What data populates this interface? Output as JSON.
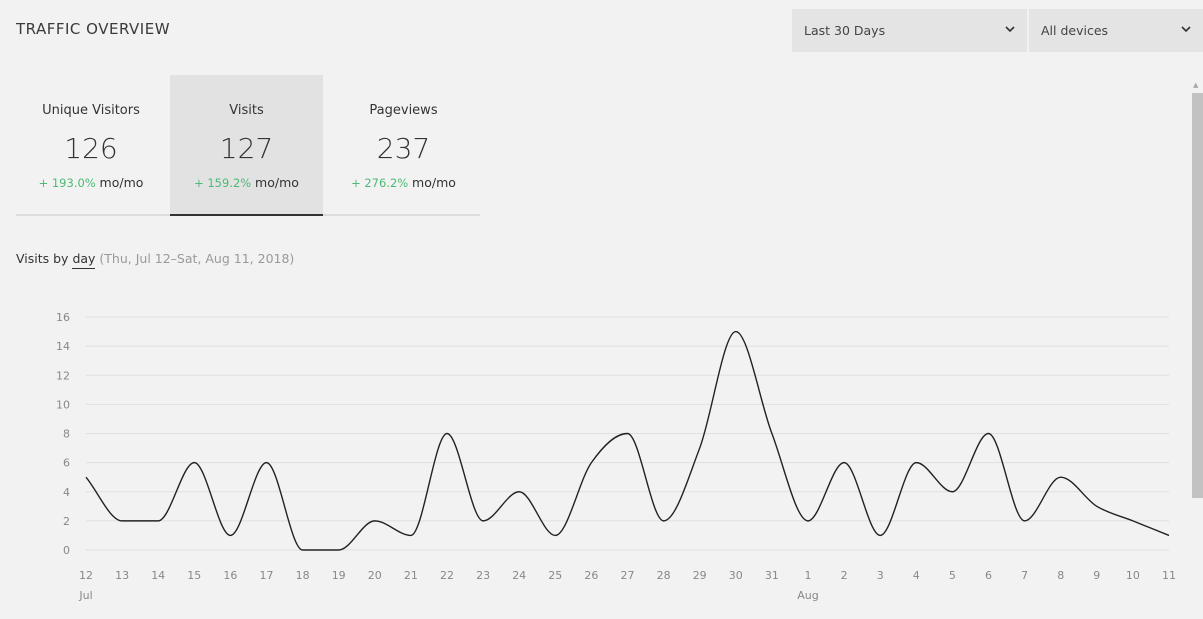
{
  "header": {
    "title": "TRAFFIC OVERVIEW"
  },
  "filters": {
    "range_label": "Last 30 Days",
    "devices_label": "All devices",
    "chevron_icon": "chevron-down-icon"
  },
  "metrics": [
    {
      "label": "Unique Visitors",
      "value": "126",
      "change": "+ 193.0%",
      "unit": "mo/mo"
    },
    {
      "label": "Visits",
      "value": "127",
      "change": "+ 159.2%",
      "unit": "mo/mo"
    },
    {
      "label": "Pageviews",
      "value": "237",
      "change": "+ 276.2%",
      "unit": "mo/mo"
    }
  ],
  "active_metric": "Visits",
  "subtitle": {
    "prefix": "Visits by ",
    "granularity": "day",
    "range": "(Thu, Jul 12–Sat, Aug 11, 2018)"
  },
  "colors": {
    "positive": "#4cba76",
    "line": "#222222",
    "grid": "#e0e0e0"
  },
  "chart_data": {
    "type": "line",
    "x": [
      "12",
      "13",
      "14",
      "15",
      "16",
      "17",
      "18",
      "19",
      "20",
      "21",
      "22",
      "23",
      "24",
      "25",
      "26",
      "27",
      "28",
      "29",
      "30",
      "31",
      "1",
      "2",
      "3",
      "4",
      "5",
      "6",
      "7",
      "8",
      "9",
      "10",
      "11"
    ],
    "month_labels": [
      {
        "at": "12",
        "label": "Jul"
      },
      {
        "at": "1",
        "label": "Aug"
      }
    ],
    "series": [
      {
        "values": [
          5,
          2,
          2,
          6,
          1,
          6,
          0,
          0,
          2,
          1,
          8,
          2,
          4,
          1,
          6,
          8,
          2,
          7,
          15,
          8,
          2,
          6,
          1,
          6,
          4,
          8,
          2,
          5,
          3,
          2,
          1
        ]
      }
    ],
    "ylim": [
      0,
      16
    ],
    "yticks": [
      0,
      2,
      4,
      6,
      8,
      10,
      12,
      14,
      16
    ],
    "grid": true
  }
}
